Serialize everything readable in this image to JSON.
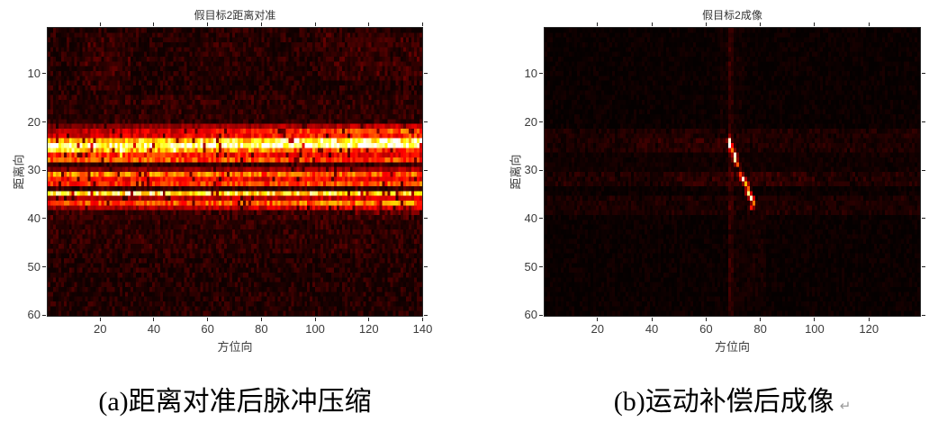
{
  "captions": {
    "a": "(a)距离对准后脉冲压缩",
    "b": "(b)运动补偿后成像",
    "return_mark": "↵"
  },
  "colors": {
    "background": "#ffffff",
    "axis": "#262626",
    "tick_label": "#3b3b3b",
    "caption_text": "#000000"
  },
  "chart_data": [
    {
      "type": "heatmap",
      "title": "假目标2距离对准",
      "xlabel": "方位向",
      "ylabel": "距离向",
      "x_ticks": [
        20,
        40,
        60,
        80,
        100,
        120,
        140
      ],
      "y_ticks": [
        10,
        20,
        30,
        40,
        50,
        60
      ],
      "x_range": [
        1,
        140
      ],
      "y_range": [
        1,
        60
      ],
      "y_direction": "reverse",
      "colormap": "hot",
      "legend": false,
      "grid": {
        "cols": 140,
        "rows": 60
      },
      "noise": {
        "base": 0.02,
        "amp": 0.09,
        "seed": 7
      },
      "patches": [
        {
          "rows": [
            2,
            13
          ],
          "cols": [
            15,
            31
          ],
          "v": 0.05
        },
        {
          "rows": [
            2,
            11
          ],
          "cols": [
            103,
            140
          ],
          "v": 0.055
        },
        {
          "rows": [
            4,
            10
          ],
          "cols": [
            55,
            78
          ],
          "v": 0.02
        },
        {
          "rows": [
            15,
            20
          ],
          "cols": [
            1,
            140
          ],
          "v": 0.03
        },
        {
          "rows": [
            21,
            40
          ],
          "cols": [
            1,
            140
          ],
          "v": 0.06
        },
        {
          "rows": [
            41,
            47
          ],
          "cols": [
            1,
            140
          ],
          "v": 0.03
        },
        {
          "rows": [
            37,
            39
          ],
          "cols": [
            116,
            140
          ],
          "v": 0.12
        }
      ],
      "streaks": [
        {
          "row": 21,
          "left": 0.16,
          "right": 0.3
        },
        {
          "row": 22,
          "left": 0.25,
          "right": 0.5
        },
        {
          "row": 23,
          "left": 0.3,
          "right": 0.45
        },
        {
          "row": 24,
          "left": 0.62,
          "right": 0.88
        },
        {
          "row": 25,
          "left": 0.9,
          "right": 0.95
        },
        {
          "row": 26,
          "left": 0.78,
          "right": 0.4
        },
        {
          "row": 27,
          "left": 0.45,
          "right": 0.35
        },
        {
          "row": 28,
          "left": 0.5,
          "right": 0.45
        },
        {
          "row": 30,
          "left": 0.18,
          "right": 0.25
        },
        {
          "row": 31,
          "left": 0.55,
          "right": 0.5
        },
        {
          "row": 32,
          "left": 0.4,
          "right": 0.35
        },
        {
          "row": 33,
          "left": 0.42,
          "right": 0.48
        },
        {
          "row": 35,
          "left": 0.8,
          "right": 0.72
        },
        {
          "row": 36,
          "left": 0.25,
          "right": 0.3
        },
        {
          "row": 37,
          "left": 0.45,
          "right": 0.55
        },
        {
          "row": 38,
          "left": 0.22,
          "right": 0.35
        }
      ],
      "spots": [
        {
          "col": 9,
          "row": 25,
          "v": 1.0
        },
        {
          "col": 28,
          "row": 26,
          "v": 1.0
        },
        {
          "col": 48,
          "row": 26,
          "v": 1.0
        },
        {
          "col": 93,
          "row": 24,
          "v": 1.0
        },
        {
          "col": 120,
          "row": 25,
          "v": 0.98
        },
        {
          "col": 131,
          "row": 24,
          "v": 1.0
        }
      ]
    },
    {
      "type": "heatmap",
      "title": "假目标2成像",
      "xlabel": "方位向",
      "ylabel": "距离向",
      "x_ticks": [
        20,
        40,
        60,
        80,
        100,
        120
      ],
      "y_ticks": [
        10,
        20,
        30,
        40,
        50,
        60
      ],
      "x_range": [
        1,
        139
      ],
      "y_range": [
        1,
        60
      ],
      "y_direction": "reverse",
      "colormap": "hot",
      "legend": false,
      "grid": {
        "cols": 139,
        "rows": 60
      },
      "noise": {
        "base": 0.006,
        "amp": 0.03,
        "seed": 13
      },
      "patches": [
        {
          "rows": [
            22,
            26
          ],
          "cols": [
            1,
            139
          ],
          "v": 0.05
        },
        {
          "rows": [
            24,
            26
          ],
          "cols": [
            35,
            70
          ],
          "v": 0.04
        },
        {
          "rows": [
            27,
            30
          ],
          "cols": [
            1,
            139
          ],
          "v": 0.015
        },
        {
          "rows": [
            31,
            33
          ],
          "cols": [
            1,
            139
          ],
          "v": 0.055
        },
        {
          "rows": [
            31,
            33
          ],
          "cols": [
            50,
            100
          ],
          "v": 0.04
        },
        {
          "rows": [
            36,
            39
          ],
          "cols": [
            1,
            139
          ],
          "v": 0.045
        },
        {
          "rows": [
            1,
            21
          ],
          "cols": [
            66,
            74
          ],
          "v": 0.02
        },
        {
          "rows": [
            40,
            58
          ],
          "cols": [
            70,
            82
          ],
          "v": 0.025
        }
      ],
      "v_streaks": [
        {
          "col": 69,
          "rows": [
            1,
            60
          ],
          "v": 0.07
        },
        {
          "col": 70,
          "rows": [
            1,
            60
          ],
          "v": 0.04
        }
      ],
      "streaks": [],
      "spots": [
        {
          "col": 69,
          "row": 24,
          "v": 0.75
        },
        {
          "col": 69,
          "row": 25,
          "v": 1.0
        },
        {
          "col": 70,
          "row": 26,
          "v": 0.55
        },
        {
          "col": 71,
          "row": 27,
          "v": 0.8
        },
        {
          "col": 71,
          "row": 28,
          "v": 0.92
        },
        {
          "col": 72,
          "row": 29,
          "v": 0.5
        },
        {
          "col": 73,
          "row": 31,
          "v": 0.45
        },
        {
          "col": 74,
          "row": 32,
          "v": 0.97
        },
        {
          "col": 75,
          "row": 33,
          "v": 0.65
        },
        {
          "col": 76,
          "row": 34,
          "v": 0.5
        },
        {
          "col": 76,
          "row": 35,
          "v": 0.88
        },
        {
          "col": 77,
          "row": 36,
          "v": 0.95
        },
        {
          "col": 78,
          "row": 37,
          "v": 0.55
        },
        {
          "col": 77,
          "row": 38,
          "v": 0.4
        }
      ]
    }
  ]
}
